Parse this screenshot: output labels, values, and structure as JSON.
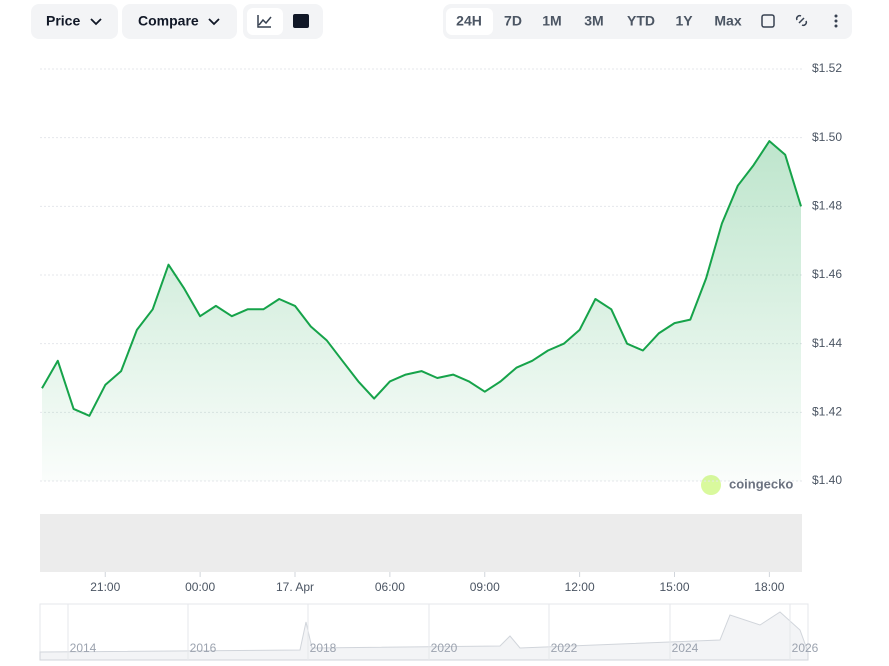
{
  "toolbar": {
    "price": "Price",
    "compare": "Compare",
    "ranges": [
      "24H",
      "7D",
      "1M",
      "3M",
      "YTD",
      "1Y",
      "Max"
    ]
  },
  "chart_data": {
    "type": "line",
    "categories": [
      null,
      null,
      null,
      null,
      "21:00",
      null,
      null,
      null,
      null,
      null,
      "00:00",
      null,
      null,
      null,
      null,
      null,
      "17. Apr",
      null,
      null,
      null,
      null,
      null,
      "06:00",
      null,
      null,
      null,
      null,
      null,
      "09:00",
      null,
      null,
      null,
      null,
      null,
      "12:00",
      null,
      null,
      null,
      null,
      null,
      "15:00",
      null,
      null,
      null,
      null,
      null,
      "18:00",
      null,
      null
    ],
    "values": [
      1.427,
      1.435,
      1.421,
      1.419,
      1.428,
      1.432,
      1.444,
      1.45,
      1.463,
      1.456,
      1.448,
      1.451,
      1.448,
      1.45,
      1.45,
      1.453,
      1.451,
      1.445,
      1.441,
      1.435,
      1.429,
      1.424,
      1.429,
      1.431,
      1.432,
      1.43,
      1.431,
      1.429,
      1.426,
      1.429,
      1.433,
      1.435,
      1.438,
      1.44,
      1.444,
      1.453,
      1.45,
      1.44,
      1.438,
      1.443,
      1.446,
      1.447,
      1.459,
      1.475,
      1.486,
      1.492,
      1.499,
      1.495,
      1.48
    ],
    "color": "#16a34a",
    "ylim": [
      1.4,
      1.52
    ],
    "yticks": [
      {
        "value": 1.4,
        "label": "$1.40"
      },
      {
        "value": 1.42,
        "label": "$1.42"
      },
      {
        "value": 1.44,
        "label": "$1.44"
      },
      {
        "value": 1.46,
        "label": "$1.46"
      },
      {
        "value": 1.48,
        "label": "$1.48"
      },
      {
        "value": 1.5,
        "label": "$1.50"
      },
      {
        "value": 1.52,
        "label": "$1.52"
      }
    ],
    "grid": true,
    "watermark": "coingecko"
  },
  "navigator": {
    "labels": [
      "2014",
      "2016",
      "2018",
      "2020",
      "2022",
      "2024",
      "2026"
    ]
  }
}
